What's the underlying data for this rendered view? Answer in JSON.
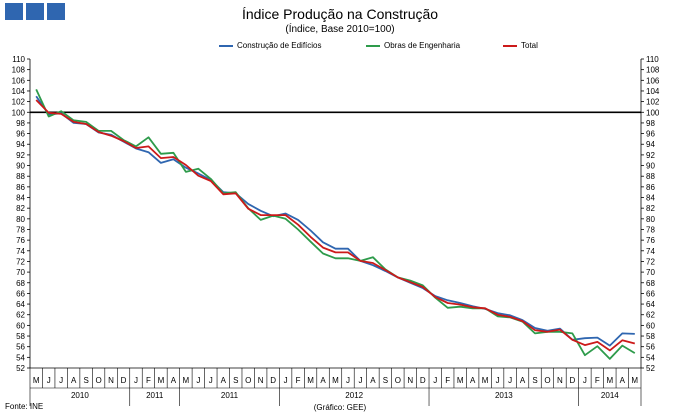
{
  "chart_data": {
    "type": "line",
    "title": "Índice Produção na Construção",
    "subtitle": "(Índice, Base 2010=100)",
    "ylim": [
      52,
      110
    ],
    "ytick_step": 2,
    "reference_line": 100,
    "x": [
      "M",
      "J",
      "J",
      "A",
      "S",
      "O",
      "N",
      "D",
      "J",
      "F",
      "M",
      "A",
      "M",
      "J",
      "J",
      "A",
      "S",
      "O",
      "N",
      "D",
      "J",
      "F",
      "M",
      "A",
      "M",
      "J",
      "J",
      "A",
      "S",
      "O",
      "N",
      "D",
      "J",
      "F",
      "M",
      "A",
      "M",
      "J",
      "J",
      "A",
      "S",
      "O",
      "N",
      "D",
      "J",
      "F",
      "M",
      "A",
      "M"
    ],
    "year_groups": [
      {
        "label": "2010",
        "count": 8
      },
      {
        "label": "2011",
        "count": 4
      },
      {
        "label": "2011",
        "count": 8
      },
      {
        "label": "2012",
        "count": 12
      },
      {
        "label": "2013",
        "count": 12
      },
      {
        "label": "2014",
        "count": 5
      }
    ],
    "series": [
      {
        "name": "Construção de Edifícios",
        "color": "#2f66b0",
        "values": [
          103.0,
          99.6,
          99.8,
          98.0,
          97.8,
          96.2,
          95.8,
          94.5,
          93.2,
          92.5,
          90.5,
          91.2,
          89.6,
          88.5,
          87.3,
          85.0,
          84.8,
          82.8,
          81.5,
          80.5,
          81.0,
          79.8,
          77.8,
          75.6,
          74.4,
          74.4,
          72.1,
          71.3,
          70.2,
          69.0,
          68.0,
          67.0,
          65.5,
          64.7,
          64.2,
          63.6,
          63.1,
          62.3,
          61.9,
          61.0,
          59.5,
          59.0,
          59.4,
          57.3,
          57.6,
          57.7,
          56.2,
          58.5,
          58.4
        ]
      },
      {
        "name": "Obras de Engenharia",
        "color": "#2e9b4b",
        "values": [
          104.3,
          99.2,
          100.2,
          98.5,
          98.2,
          96.5,
          96.5,
          94.8,
          93.6,
          95.3,
          92.2,
          92.4,
          88.8,
          89.4,
          87.5,
          84.8,
          85.0,
          82.0,
          79.8,
          80.6,
          80.0,
          78.0,
          75.7,
          73.5,
          72.6,
          72.6,
          72.1,
          72.8,
          70.5,
          69.0,
          68.4,
          67.5,
          65.2,
          63.3,
          63.5,
          63.2,
          63.2,
          61.7,
          61.5,
          60.7,
          58.5,
          58.8,
          58.8,
          58.5,
          54.4,
          56.1,
          53.7,
          56.2,
          54.8
        ]
      },
      {
        "name": "Total",
        "color": "#cc1a1a",
        "values": [
          102.3,
          99.9,
          99.7,
          98.2,
          97.8,
          96.3,
          95.6,
          94.6,
          93.3,
          93.6,
          91.4,
          91.6,
          90.1,
          88.1,
          87.1,
          84.6,
          84.8,
          81.9,
          80.7,
          80.7,
          80.7,
          78.9,
          76.6,
          74.6,
          73.7,
          73.7,
          72.1,
          71.7,
          70.4,
          69.0,
          68.1,
          67.2,
          65.3,
          64.2,
          63.9,
          63.4,
          63.2,
          62.0,
          61.6,
          60.8,
          59.1,
          58.8,
          59.2,
          57.3,
          56.3,
          56.9,
          55.3,
          57.2,
          56.6
        ]
      }
    ]
  },
  "source": "Fonte: INE",
  "credit": "(Gráfico: GEE)"
}
